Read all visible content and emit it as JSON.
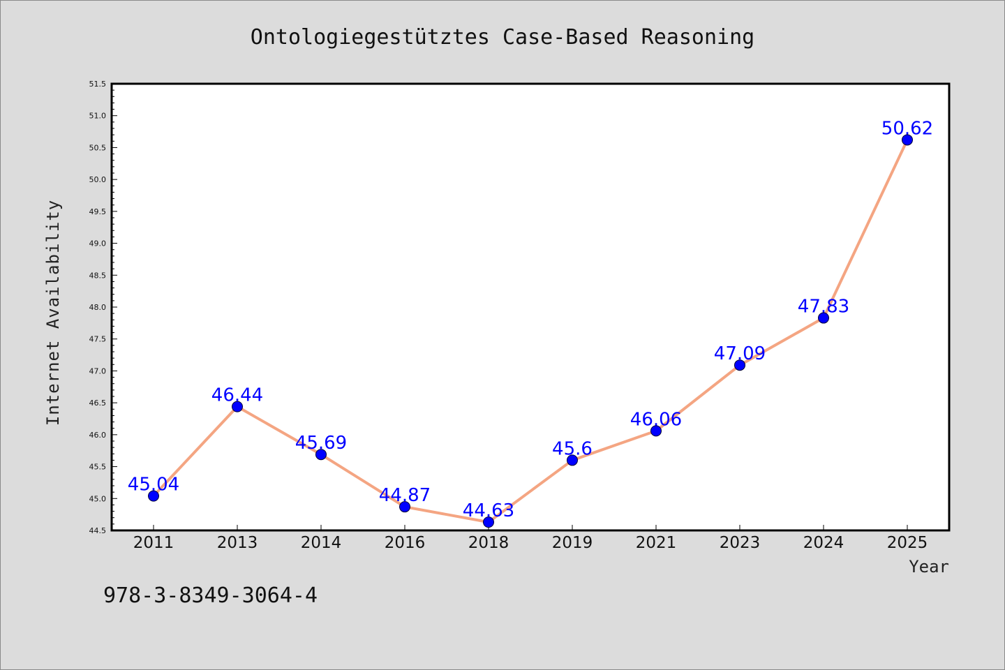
{
  "chart_data": {
    "type": "line",
    "title": "Ontologiegestütztes Case-Based Reasoning",
    "xlabel": "Year",
    "ylabel": "Internet Availability",
    "categories": [
      "2011",
      "2013",
      "2014",
      "2016",
      "2018",
      "2019",
      "2021",
      "2023",
      "2024",
      "2025"
    ],
    "series": [
      {
        "values": [
          45.04,
          46.44,
          45.69,
          44.87,
          44.63,
          45.6,
          46.06,
          47.09,
          47.83,
          50.62
        ],
        "labels": [
          "45.04",
          "46.44",
          "45.69",
          "44.87",
          "44.63",
          "45.6",
          "46.06",
          "47.09",
          "47.83",
          "50.62"
        ],
        "line_color": "#f4a582",
        "marker_color": "#0000ff"
      }
    ],
    "ylim": [
      44.5,
      51.5
    ],
    "yticks": [
      "44.5",
      "45.0",
      "45.5",
      "46.0",
      "46.5",
      "47.0",
      "47.5",
      "48.0",
      "48.5",
      "49.0",
      "49.5",
      "50.0",
      "50.5",
      "51.0",
      "51.5"
    ],
    "grid": false,
    "legend": "none"
  },
  "footer": {
    "isbn": "978-3-8349-3064-4"
  },
  "colors": {
    "background": "#dcdcdc",
    "plot_background": "#ffffff",
    "label_color": "#0000ff"
  }
}
